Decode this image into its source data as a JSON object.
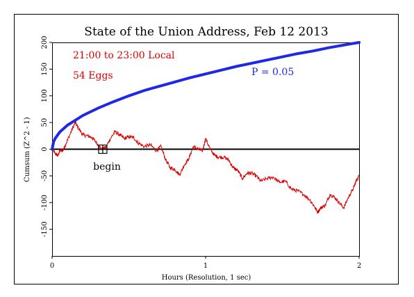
{
  "chart_data": {
    "type": "line",
    "title": "State of the Union Address, Feb 12 2013",
    "xlabel": "Hours (Resolution, 1 sec)",
    "ylabel": "Cumsum (Z^2 - 1)",
    "xlim": [
      0,
      2
    ],
    "ylim": [
      -200,
      200
    ],
    "x_ticks": [
      "0",
      "1",
      "2"
    ],
    "y_ticks": [
      "-150",
      "-100",
      "-50",
      "0",
      "50",
      "100",
      "150",
      "200"
    ],
    "annotations": {
      "time_range": "21:00 to 23:00 Local",
      "eggs": "54 Eggs",
      "p_label": "P = 0.05",
      "event_label": "begin"
    },
    "event_marker": {
      "x": 0.33,
      "y": 0
    },
    "series": [
      {
        "color": "#dd0000",
        "x": [
          0,
          0.02,
          0.04,
          0.05,
          0.07,
          0.09,
          0.12,
          0.15,
          0.17,
          0.2,
          0.23,
          0.26,
          0.29,
          0.32,
          0.35,
          0.38,
          0.41,
          0.44,
          0.47,
          0.5,
          0.53,
          0.56,
          0.6,
          0.64,
          0.68,
          0.71,
          0.74,
          0.77,
          0.8,
          0.83,
          0.86,
          0.89,
          0.92,
          0.95,
          0.98,
          1.0,
          1.03,
          1.06,
          1.09,
          1.12,
          1.15,
          1.18,
          1.21,
          1.24,
          1.27,
          1.3,
          1.33,
          1.36,
          1.4,
          1.44,
          1.48,
          1.52,
          1.56,
          1.6,
          1.64,
          1.68,
          1.71,
          1.73,
          1.75,
          1.78,
          1.81,
          1.84,
          1.87,
          1.9,
          1.93,
          1.96,
          1.98,
          2.0
        ],
        "values": [
          0,
          -8,
          -12,
          -2,
          -3,
          10,
          30,
          50,
          40,
          27,
          25,
          22,
          12,
          0,
          3,
          20,
          33,
          27,
          20,
          23,
          22,
          12,
          5,
          8,
          -3,
          5,
          -20,
          -35,
          -38,
          -48,
          -30,
          -18,
          5,
          0,
          -3,
          20,
          0,
          -12,
          -15,
          -15,
          -20,
          -35,
          -40,
          -55,
          -45,
          -45,
          -50,
          -60,
          -55,
          -52,
          -62,
          -60,
          -75,
          -78,
          -85,
          -95,
          -108,
          -118,
          -110,
          -105,
          -85,
          -90,
          -100,
          -110,
          -90,
          -75,
          -60,
          -50
        ]
      },
      {
        "name": "P = 0.05",
        "color": "#1e28e6",
        "x": [
          0,
          0.01,
          0.02,
          0.05,
          0.1,
          0.2,
          0.3,
          0.4,
          0.5,
          0.6,
          0.7,
          0.8,
          0.9,
          1.0,
          1.1,
          1.2,
          1.3,
          1.4,
          1.5,
          1.6,
          1.7,
          1.8,
          1.9,
          2.0
        ],
        "values": [
          0,
          14,
          20,
          32,
          45,
          63,
          77,
          89,
          100,
          110,
          118,
          126,
          134,
          141,
          148,
          155,
          161,
          167,
          173,
          179,
          184,
          190,
          195,
          200
        ]
      }
    ]
  }
}
